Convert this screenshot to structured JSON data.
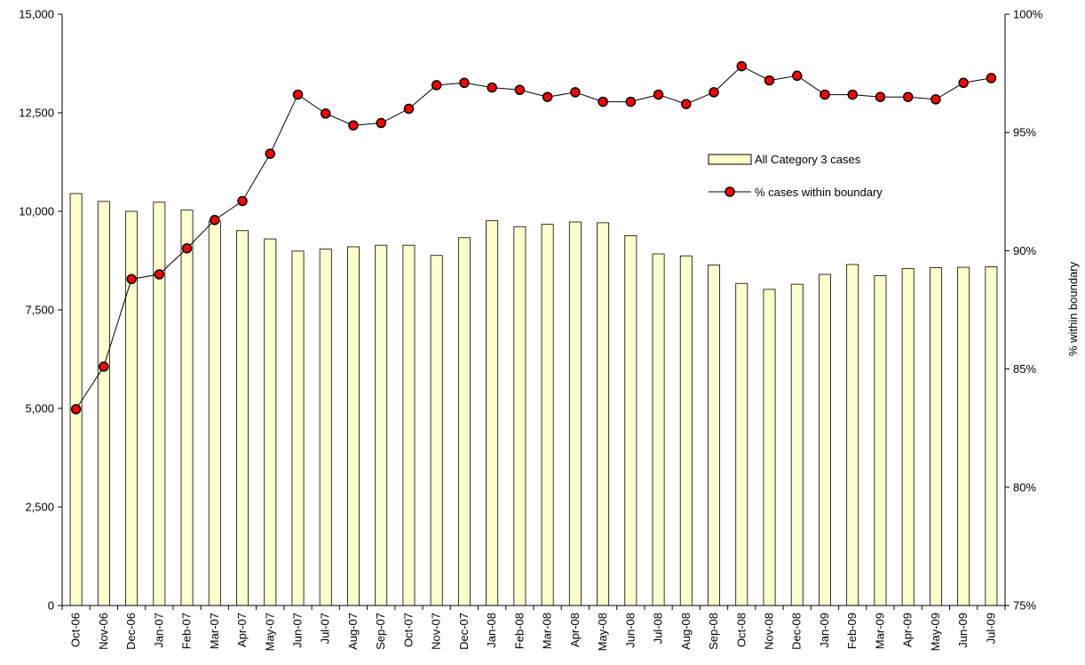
{
  "chart_data": {
    "type": "bar",
    "categories": [
      "Oct-06",
      "Nov-06",
      "Dec-06",
      "Jan-07",
      "Feb-07",
      "Mar-07",
      "Apr-07",
      "May-07",
      "Jun-07",
      "Jul-07",
      "Aug-07",
      "Sep-07",
      "Oct-07",
      "Nov-07",
      "Dec-07",
      "Jan-08",
      "Feb-08",
      "Mar-08",
      "Apr-08",
      "May-08",
      "Jun-08",
      "Jul-08",
      "Aug-08",
      "Sep-08",
      "Oct-08",
      "Nov-08",
      "Dec-08",
      "Jan-09",
      "Feb-09",
      "Mar-09",
      "Apr-09",
      "May-09",
      "Jun-09",
      "Jul-09"
    ],
    "series": [
      {
        "name": "All Category 3 cases",
        "type": "bar",
        "axis": "left",
        "color": "#FFFFCC",
        "values": [
          10450,
          10250,
          10000,
          10230,
          10030,
          9750,
          9510,
          9300,
          8990,
          9040,
          9100,
          9140,
          9140,
          8880,
          9330,
          9760,
          9610,
          9670,
          9730,
          9710,
          9380,
          8920,
          8870,
          8640,
          8170,
          8020,
          8150,
          8400,
          8650,
          8370,
          8550,
          8570,
          8580,
          8590
        ]
      },
      {
        "name": "% cases within boundary",
        "type": "line",
        "axis": "right",
        "color": "#FF0000",
        "values": [
          83.3,
          85.1,
          88.8,
          89.0,
          90.1,
          91.3,
          92.1,
          94.1,
          96.6,
          95.8,
          95.3,
          95.4,
          96.0,
          97.0,
          97.1,
          96.9,
          96.8,
          96.5,
          96.7,
          96.3,
          96.3,
          96.6,
          96.2,
          96.7,
          97.8,
          97.2,
          97.4,
          96.6,
          96.6,
          96.5,
          96.5,
          96.4,
          97.1,
          97.3
        ]
      }
    ],
    "y_left": {
      "min": 0,
      "max": 15000,
      "ticks": [
        "0",
        "2,500",
        "5,000",
        "7,500",
        "10,000",
        "12,500",
        "15,000"
      ]
    },
    "y_right": {
      "min": 75,
      "max": 100,
      "ticks": [
        "75%",
        "80%",
        "85%",
        "90%",
        "95%",
        "100%"
      ]
    },
    "ylabel_right": "% within boundary",
    "legend": {
      "placement": "inside-upper-right",
      "items": [
        "All Category 3 cases",
        "% cases within boundary"
      ]
    },
    "grid": false
  }
}
